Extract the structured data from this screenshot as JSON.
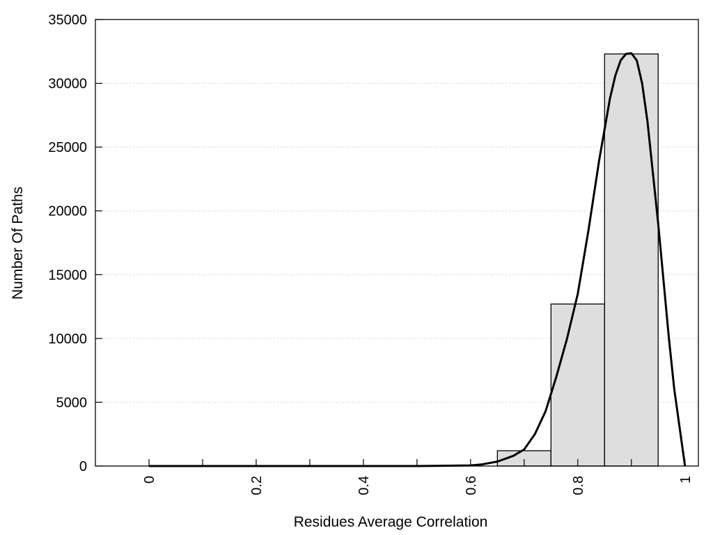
{
  "chart_data": {
    "type": "bar",
    "title": "",
    "xlabel": "Residues Average Correlation",
    "ylabel": "Number Of Paths",
    "xlim": [
      -0.1,
      1.025
    ],
    "ylim": [
      0,
      35000
    ],
    "grid": "horizontal dotted",
    "xticks": [
      0,
      0.2,
      0.4,
      0.6,
      0.8,
      1
    ],
    "xtick_labels": [
      "0",
      "0.2",
      "0.4",
      "0.6",
      "0.8",
      "1"
    ],
    "xminor_ticks": [
      0.1,
      0.3,
      0.5,
      0.7,
      0.9
    ],
    "yticks": [
      0,
      5000,
      10000,
      15000,
      20000,
      25000,
      30000,
      35000
    ],
    "ytick_labels": [
      "0",
      "5000",
      "10000",
      "15000",
      "20000",
      "25000",
      "30000",
      "35000"
    ],
    "bars": [
      {
        "x0": 0.65,
        "x1": 0.75,
        "value": 1200
      },
      {
        "x0": 0.75,
        "x1": 0.85,
        "value": 12700
      },
      {
        "x0": 0.85,
        "x1": 0.95,
        "value": 32300
      }
    ],
    "bar_color": "#dedede",
    "curve": {
      "x": [
        0,
        0.1,
        0.2,
        0.3,
        0.4,
        0.5,
        0.6,
        0.62,
        0.65,
        0.68,
        0.7,
        0.72,
        0.74,
        0.76,
        0.78,
        0.8,
        0.82,
        0.84,
        0.86,
        0.87,
        0.88,
        0.89,
        0.9,
        0.91,
        0.92,
        0.93,
        0.94,
        0.95,
        0.96,
        0.97,
        0.98,
        0.99,
        1.0
      ],
      "y": [
        0,
        0,
        0,
        0,
        0,
        0,
        50,
        120,
        350,
        800,
        1300,
        2500,
        4300,
        7000,
        10000,
        13500,
        18500,
        24000,
        28800,
        30600,
        31800,
        32300,
        32350,
        31800,
        30000,
        27000,
        23000,
        19000,
        14500,
        10000,
        6000,
        3000,
        0
      ],
      "color": "#000000"
    }
  }
}
